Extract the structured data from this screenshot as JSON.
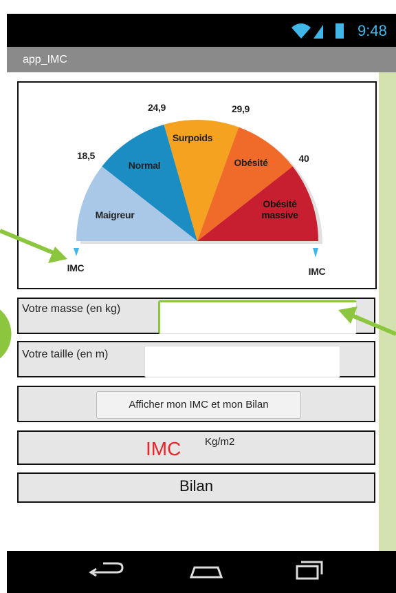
{
  "status_bar": {
    "time": "9:48"
  },
  "app_bar": {
    "title": "app_IMC"
  },
  "gauge": {
    "thresholds": [
      "18,5",
      "24,9",
      "29,9",
      "40"
    ],
    "segments": [
      "Maigreur",
      "Normal",
      "Surpoids",
      "Obésité",
      "Obésité massive"
    ],
    "min_label": "IMC",
    "max_label": "IMC"
  },
  "form": {
    "mass_label": "Votre masse (en kg)",
    "height_label": "Votre taille (en m)",
    "button": "Afficher mon IMC et mon Bilan"
  },
  "result": {
    "imc": "IMC",
    "unit": "Kg/m2",
    "bilan": "Bilan"
  }
}
